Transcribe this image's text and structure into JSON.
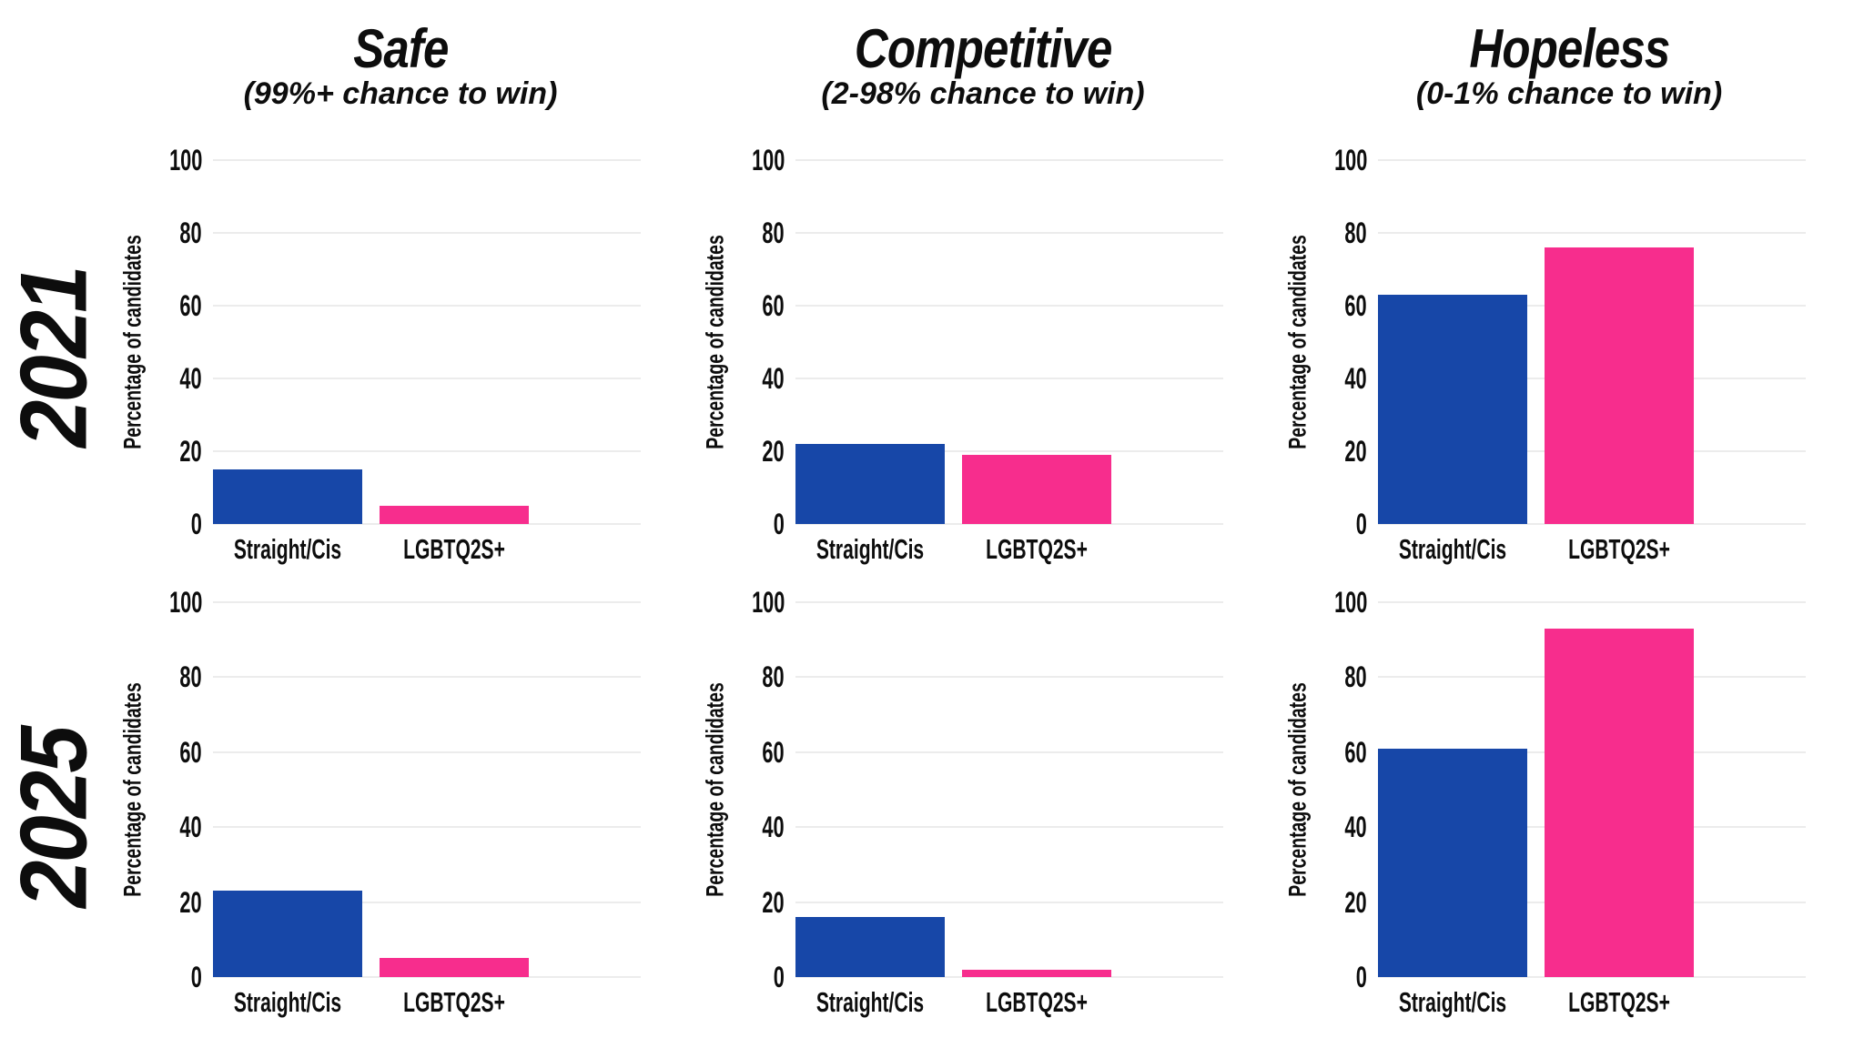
{
  "page": {
    "background": "#ffffff",
    "text_color": "#0d0d0d",
    "gridline_color": "#ececec"
  },
  "chart_data": {
    "type": "bar",
    "layout": "2 rows x 3 columns of small-multiple bar charts",
    "rows": [
      {
        "label": "2021"
      },
      {
        "label": "2025"
      }
    ],
    "columns": [
      {
        "title": "Safe",
        "subtitle": "(99%+ chance to win)"
      },
      {
        "title": "Competitive",
        "subtitle": "(2-98% chance to win)"
      },
      {
        "title": "Hopeless",
        "subtitle": "(0-1% chance to win)"
      }
    ],
    "categories": [
      "Straight/Cis",
      "LGBTQ2S+"
    ],
    "series_colors": [
      {
        "name": "Straight/Cis",
        "color": "#1747A8"
      },
      {
        "name": "LGBTQ2S+",
        "color": "#F72D8D"
      }
    ],
    "ylabel": "Percentage of candidates",
    "ylim": [
      0,
      100
    ],
    "yticks": [
      0,
      20,
      40,
      60,
      80,
      100
    ],
    "grid": "horizontal gridlines on",
    "legend_position": "none",
    "charts": [
      {
        "row": "2021",
        "column": "Safe",
        "values": [
          15,
          5
        ]
      },
      {
        "row": "2021",
        "column": "Competitive",
        "values": [
          22,
          19
        ]
      },
      {
        "row": "2021",
        "column": "Hopeless",
        "values": [
          63,
          76
        ]
      },
      {
        "row": "2025",
        "column": "Safe",
        "values": [
          23,
          5
        ]
      },
      {
        "row": "2025",
        "column": "Competitive",
        "values": [
          16,
          2
        ]
      },
      {
        "row": "2025",
        "column": "Hopeless",
        "values": [
          61,
          93
        ]
      }
    ]
  }
}
